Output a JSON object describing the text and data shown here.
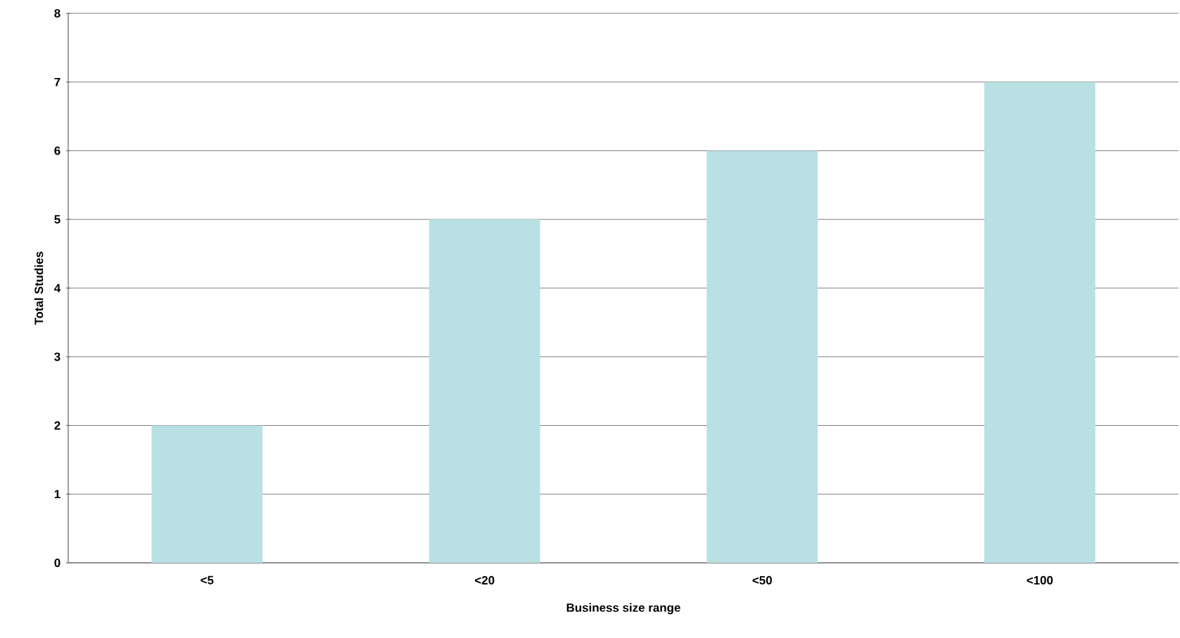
{
  "chart_data": {
    "type": "bar",
    "xlabel": "Business size range",
    "ylabel": "Total Studies",
    "categories": [
      "<5",
      "<20",
      "<50",
      "<100"
    ],
    "values": [
      2,
      5,
      6,
      7
    ],
    "color": "#b9e0e3",
    "ylim": [
      0,
      8
    ],
    "yticks": [
      0,
      1,
      2,
      3,
      4,
      5,
      6,
      7,
      8
    ],
    "grid": "y"
  }
}
